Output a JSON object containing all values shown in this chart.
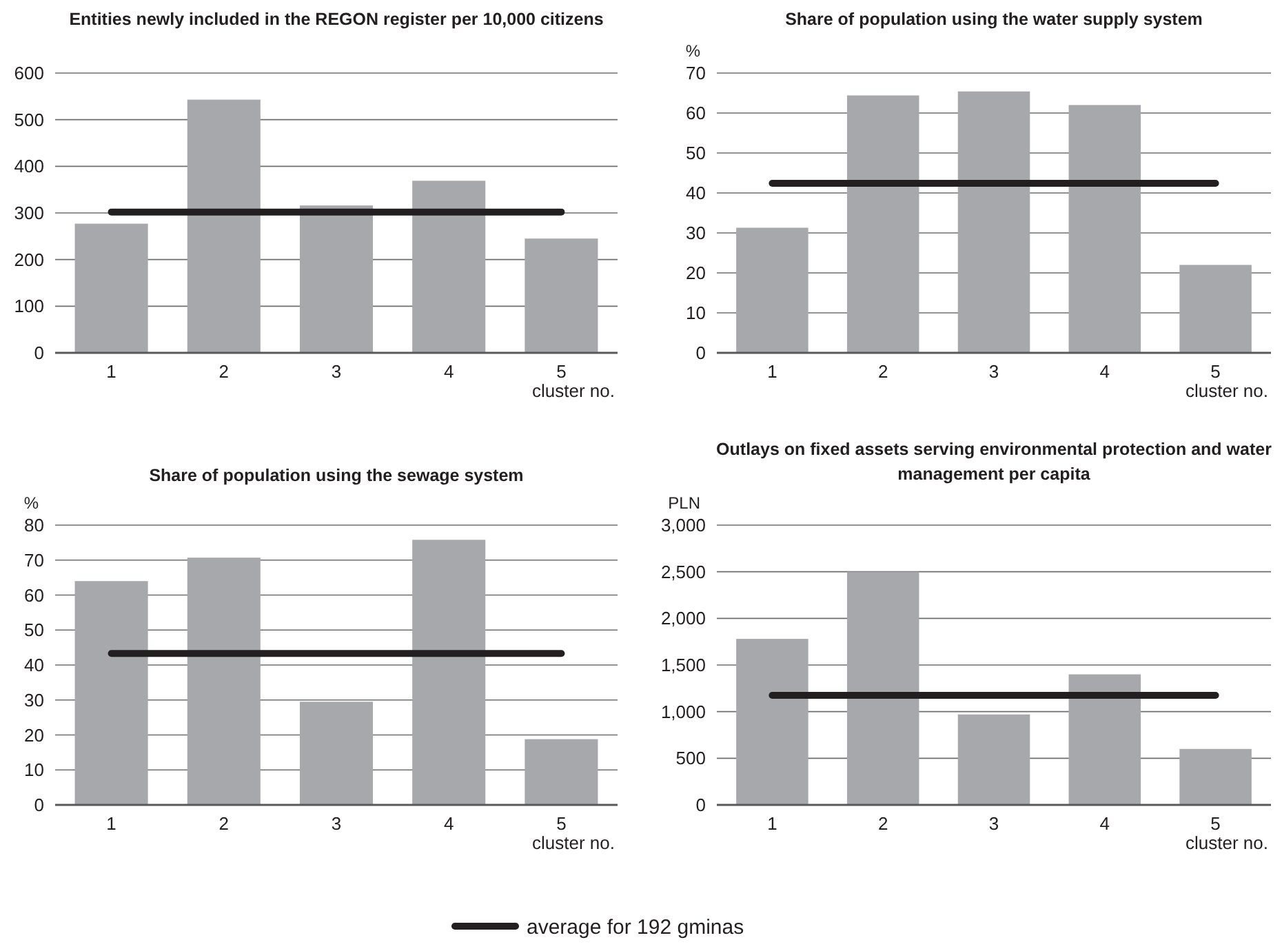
{
  "chart_data": [
    {
      "type": "bar",
      "title": "Entities newly included in the REGON register per 10,000 citizens",
      "xlabel": "cluster no.",
      "categories": [
        "1",
        "2",
        "3",
        "4",
        "5"
      ],
      "values": [
        277,
        543,
        316,
        369,
        245
      ],
      "color": "#a7a8ab",
      "ylim": [
        0,
        600
      ],
      "yticks": [
        0,
        100,
        200,
        300,
        400,
        500,
        600
      ],
      "grid": "y",
      "legend": "bottom",
      "ref_lines": [
        {
          "axis": "y",
          "value": 302,
          "label": "average for 192 gminas",
          "color": "#231f20"
        }
      ]
    },
    {
      "type": "bar",
      "title": "Share of population using the water supply system",
      "xlabel": "cluster no.",
      "ylabel": "%",
      "categories": [
        "1",
        "2",
        "3",
        "4",
        "5"
      ],
      "values": [
        31.3,
        64.4,
        65.4,
        62.0,
        22.0
      ],
      "color": "#a7a8ab",
      "ylim": [
        0,
        70
      ],
      "yticks": [
        0,
        10,
        20,
        30,
        40,
        50,
        60,
        70
      ],
      "grid": "y",
      "ref_lines": [
        {
          "axis": "y",
          "value": 42.4,
          "color": "#231f20"
        }
      ]
    },
    {
      "type": "bar",
      "title": "Share of population using the sewage system",
      "xlabel": "cluster no.",
      "ylabel": "%",
      "categories": [
        "1",
        "2",
        "3",
        "4",
        "5"
      ],
      "values": [
        64.0,
        70.7,
        29.5,
        75.8,
        18.8
      ],
      "color": "#a7a8ab",
      "ylim": [
        0,
        80
      ],
      "yticks": [
        0,
        10,
        20,
        30,
        40,
        50,
        60,
        70,
        80
      ],
      "grid": "y",
      "ref_lines": [
        {
          "axis": "y",
          "value": 43.3,
          "color": "#231f20"
        }
      ]
    },
    {
      "type": "bar",
      "title": "Outlays on fixed assets serving environmental protection and water management per capita",
      "xlabel": "cluster no.",
      "ylabel": "PLN",
      "categories": [
        "1",
        "2",
        "3",
        "4",
        "5"
      ],
      "values": [
        1780,
        2500,
        970,
        1400,
        600
      ],
      "color": "#a7a8ab",
      "ylim": [
        0,
        3000
      ],
      "yticks": [
        0,
        {
          "value": 500,
          "label": "500"
        },
        {
          "value": 1000,
          "label": "1,000"
        },
        {
          "value": 1500,
          "label": "1,500"
        },
        {
          "value": 2000,
          "label": "2,000"
        },
        {
          "value": 2500,
          "label": "2,500"
        },
        {
          "value": 3000,
          "label": "3,000"
        }
      ],
      "grid": "y",
      "ref_lines": [
        {
          "axis": "y",
          "value": 1175,
          "color": "#231f20"
        }
      ]
    }
  ]
}
